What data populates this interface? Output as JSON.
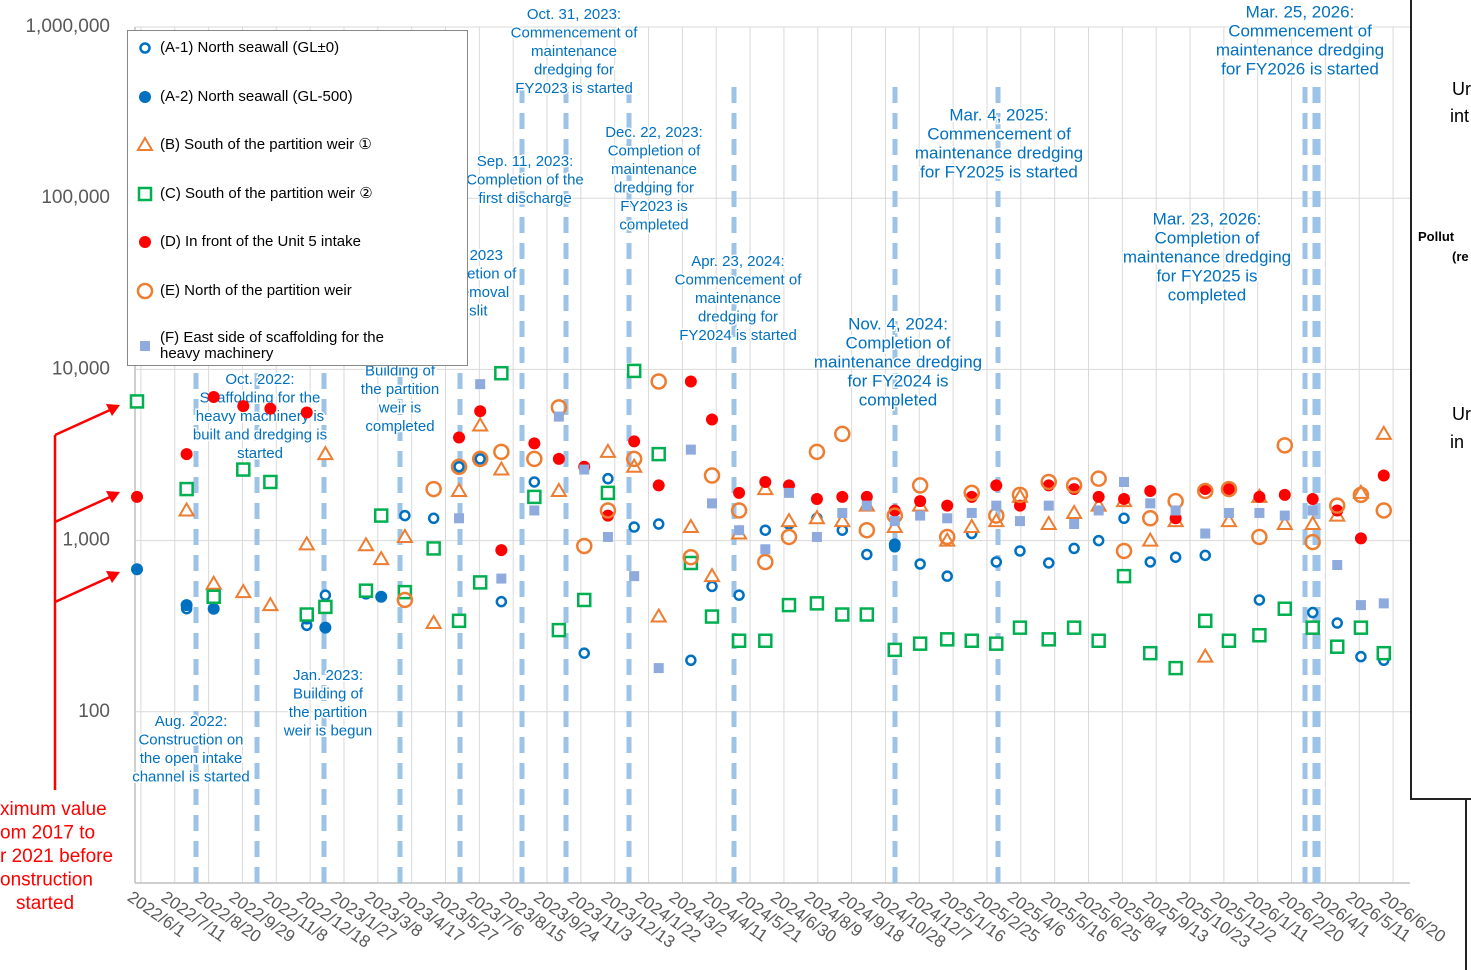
{
  "chart_data": {
    "type": "scatter",
    "log_y": true,
    "grid": true,
    "xlim": [
      "2022/5/25",
      "2026/7/10"
    ],
    "ylim": [
      10,
      1000000
    ],
    "yticks": [
      100,
      {
        "value": 1000,
        "label": "1,000"
      },
      {
        "value": 10000,
        "label": "10,000"
      },
      {
        "value": 100000,
        "label": "100,000"
      },
      {
        "value": 1000000,
        "label": "1,000,000"
      }
    ],
    "xticks": [
      "2022/6/1",
      "2022/7/11",
      "2022/8/20",
      "2022/9/29",
      "2022/11/8",
      "2022/12/18",
      "2023/1/27",
      "2023/3/8",
      "2023/4/17",
      "2023/5/27",
      "2023/7/6",
      "2023/8/15",
      "2023/9/24",
      "2023/11/3",
      "2023/12/13",
      "2024/1/22",
      "2024/3/2",
      "2024/4/11",
      "2024/5/21",
      "2024/6/30",
      "2024/8/9",
      "2024/9/18",
      "2024/10/28",
      "2024/12/7",
      "2025/1/16",
      "2025/2/25",
      "2025/4/6",
      "2025/5/16",
      "2025/6/25",
      "2025/8/4",
      "2025/9/13",
      "2025/10/23",
      "2025/12/2",
      "2026/1/11",
      "2026/2/20",
      "2026/4/1",
      "2026/5/11",
      "2026/6/20"
    ],
    "x": [
      "2022/7/25",
      "2022/8/26",
      "2022/9/30",
      "2022/11/1",
      "2022/12/14",
      "2023/1/5",
      "2023/2/22",
      "2023/3/12",
      "2023/4/9",
      "2023/5/13",
      "2023/6/12",
      "2023/7/7",
      "2023/8/1",
      "2023/9/9",
      "2023/10/8",
      "2023/11/7",
      "2023/12/5",
      "2024/1/5",
      "2024/2/3",
      "2024/3/12",
      "2024/4/6",
      "2024/5/8",
      "2024/6/8",
      "2024/7/6",
      "2024/8/8",
      "2024/9/7",
      "2024/10/6",
      "2024/11/8",
      "2024/12/8",
      "2025/1/9",
      "2025/2/7",
      "2025/3/8",
      "2025/4/5",
      "2025/5/9",
      "2025/6/8",
      "2025/7/7",
      "2025/8/6",
      "2025/9/6",
      "2025/10/6",
      "2025/11/10",
      "2025/12/8",
      "2026/1/13",
      "2026/2/12",
      "2026/3/17",
      "2026/4/15",
      "2026/5/13",
      "2026/6/9"
    ],
    "series": [
      {
        "name": "(A-1) North seawall (GL±0)",
        "color": "#0070c0",
        "marker": "open-circle",
        "values": [
          400,
          400,
          null,
          null,
          320,
          480,
          500,
          null,
          1400,
          1350,
          2700,
          3000,
          440,
          2200,
          300,
          220,
          2300,
          1200,
          1250,
          200,
          540,
          480,
          1150,
          1250,
          1350,
          1150,
          830,
          920,
          730,
          620,
          1100,
          750,
          870,
          740,
          900,
          1000,
          1350,
          750,
          800,
          820,
          260,
          450,
          400,
          380,
          330,
          210,
          200
        ]
      },
      {
        "name": "(A-2) North seawall (GL-500)",
        "color": "#0070c0",
        "marker": "filled-circle",
        "max_2017_2021": 680,
        "values": [
          420,
          400,
          null,
          null,
          350,
          310,
          490,
          470,
          null,
          null,
          null,
          null,
          null,
          null,
          null,
          null,
          null,
          null,
          null,
          null,
          null,
          null,
          null,
          null,
          null,
          null,
          null,
          950,
          null,
          null,
          null,
          null,
          null,
          null,
          null,
          null,
          null,
          null,
          null,
          null,
          null,
          null,
          null,
          null,
          null,
          null,
          null
        ]
      },
      {
        "name": "(B) South of the partition weir ①",
        "color": "#ed7d31",
        "marker": "open-triangle",
        "values": [
          1500,
          560,
          500,
          420,
          950,
          3200,
          940,
          780,
          1050,
          330,
          1950,
          4700,
          2600,
          null,
          1950,
          null,
          3300,
          2700,
          360,
          1200,
          620,
          1100,
          2000,
          1300,
          1350,
          1300,
          1600,
          1200,
          1600,
          1000,
          1200,
          1300,
          1800,
          1250,
          1450,
          1600,
          1700,
          1000,
          1300,
          210,
          1300,
          1800,
          1250,
          1250,
          1400,
          1900,
          4200
        ]
      },
      {
        "name": "(C) South of the partition weir ②",
        "color": "#00b050",
        "marker": "open-square",
        "max_2017_2021": 6500,
        "values": [
          2000,
          470,
          2600,
          2200,
          370,
          410,
          510,
          1400,
          500,
          900,
          340,
          570,
          9500,
          1800,
          300,
          450,
          1900,
          9800,
          3200,
          740,
          360,
          260,
          260,
          420,
          430,
          370,
          370,
          230,
          250,
          265,
          260,
          250,
          310,
          265,
          310,
          260,
          620,
          220,
          180,
          340,
          260,
          280,
          400,
          310,
          240,
          310,
          220
        ]
      },
      {
        "name": "(D) In front of the Unit 5 intake",
        "color": "#ff0000",
        "marker": "filled-circle",
        "max_2017_2021": 1800,
        "values": [
          3200,
          6900,
          6100,
          5900,
          5600,
          null,
          null,
          null,
          null,
          null,
          4000,
          5700,
          880,
          3700,
          3000,
          2700,
          1400,
          3800,
          2100,
          8500,
          5100,
          1900,
          2200,
          2100,
          1750,
          1800,
          1800,
          1500,
          1700,
          1600,
          1800,
          2100,
          1600,
          2100,
          2000,
          1800,
          1750,
          1950,
          1350,
          2000,
          2000,
          1800,
          1850,
          1750,
          1500,
          1030,
          2400
        ]
      },
      {
        "name": "(E) North of the partition weir",
        "color": "#ed7d31",
        "marker": "open-circle-large",
        "values": [
          null,
          null,
          null,
          null,
          null,
          null,
          null,
          null,
          450,
          2000,
          2700,
          3000,
          3300,
          3000,
          6000,
          930,
          1500,
          3000,
          8500,
          800,
          2400,
          1500,
          750,
          1050,
          3300,
          4200,
          1150,
          1400,
          2100,
          1050,
          1900,
          1400,
          1850,
          2200,
          2100,
          2300,
          870,
          1350,
          1700,
          1950,
          2000,
          1050,
          3600,
          980,
          1600,
          1850,
          1500
        ]
      },
      {
        "name": "(F) East side of scaffolding for the heavy machinery",
        "color": "#8faadc",
        "marker": "filled-square",
        "values": [
          null,
          null,
          null,
          null,
          null,
          null,
          null,
          null,
          null,
          null,
          1350,
          8200,
          600,
          1500,
          5300,
          2600,
          1050,
          620,
          180,
          3400,
          1650,
          1150,
          890,
          1900,
          1050,
          1450,
          1600,
          1300,
          1400,
          1350,
          1450,
          1600,
          1300,
          1600,
          1250,
          1500,
          2200,
          1650,
          1500,
          1100,
          1450,
          1450,
          1400,
          1500,
          720,
          420,
          430
        ]
      }
    ],
    "max_note": [
      "ximum value",
      "om 2017 to",
      "r 2021 before",
      "onstruction",
      "started"
    ],
    "events": [
      {
        "lines": [
          "Aug. 2022:",
          "Construction on",
          "the open intake",
          "channel is started"
        ]
      },
      {
        "lines": [
          "Oct. 2022:",
          "Scaffolding for the",
          "heavy machinery is",
          "built and dredging is",
          "started"
        ]
      },
      {
        "lines": [
          "Jan. 2023:",
          "Building of",
          "the partition",
          "weir is begun"
        ]
      },
      {
        "lines": [
          "Apr. 2023:",
          "Building of",
          "the partition",
          "weir is",
          "completed"
        ]
      },
      {
        "lines": [
          "Jun. 2023",
          "Completion of",
          "the removal",
          "of slit"
        ]
      },
      {
        "lines": [
          "Sep. 11, 2023:",
          "Completion of the",
          "first discharge"
        ]
      },
      {
        "lines": [
          "Oct. 31, 2023:",
          "Commencement of",
          "maintenance",
          "dredging for",
          "FY2023 is started"
        ]
      },
      {
        "lines": [
          "Dec. 22, 2023:",
          "Completion of",
          "maintenance",
          "dredging for",
          "FY2023 is",
          "completed"
        ]
      },
      {
        "lines": [
          "Apr. 23, 2024:",
          "Commencement of",
          "maintenance",
          "dredging for",
          "FY2024 is started"
        ]
      },
      {
        "lines": [
          "Nov. 4, 2024:",
          "Completion of",
          "maintenance dredging",
          "for FY2024 is",
          "completed"
        ]
      },
      {
        "lines": [
          "Mar. 4, 2025:",
          "Commencement of",
          "maintenance dredging",
          "for FY2025 is started"
        ]
      },
      {
        "lines": [
          "Mar. 23, 2026:",
          "Completion of",
          "maintenance dredging",
          "for FY2025 is",
          "completed"
        ]
      },
      {
        "lines": [
          "Mar. 25, 2026:",
          "Commencement of",
          "maintenance dredging",
          "for FY2026 is started"
        ]
      }
    ]
  },
  "side_panel": {
    "texts": [
      "Ur",
      "int",
      "Pollut",
      "(re",
      "Ur",
      "in"
    ]
  }
}
